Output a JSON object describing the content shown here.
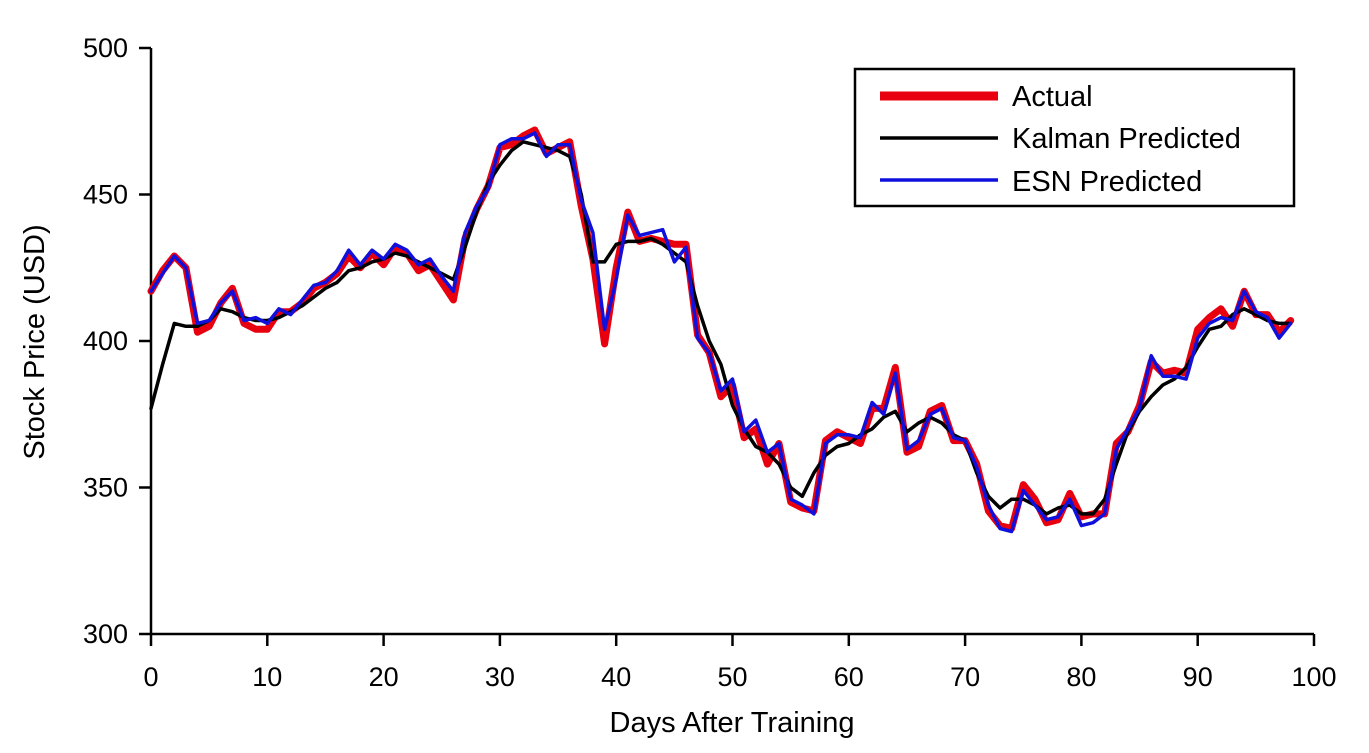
{
  "chart_data": {
    "type": "line",
    "title": "",
    "xlabel": "Days After Training",
    "ylabel": "Stock Price (USD)",
    "xlim": [
      0,
      100
    ],
    "ylim": [
      300,
      500
    ],
    "xticks": [
      0,
      10,
      20,
      30,
      40,
      50,
      60,
      70,
      80,
      90,
      100
    ],
    "yticks": [
      300,
      350,
      400,
      450,
      500
    ],
    "grid": false,
    "legend": {
      "position": "top-right"
    },
    "x": [
      0,
      1,
      2,
      3,
      4,
      5,
      6,
      7,
      8,
      9,
      10,
      11,
      12,
      13,
      14,
      15,
      16,
      17,
      18,
      19,
      20,
      21,
      22,
      23,
      24,
      25,
      26,
      27,
      28,
      29,
      30,
      31,
      32,
      33,
      34,
      35,
      36,
      37,
      38,
      39,
      40,
      41,
      42,
      43,
      44,
      45,
      46,
      47,
      48,
      49,
      50,
      51,
      52,
      53,
      54,
      55,
      56,
      57,
      58,
      59,
      60,
      61,
      62,
      63,
      64,
      65,
      66,
      67,
      68,
      69,
      70,
      71,
      72,
      73,
      74,
      75,
      76,
      77,
      78,
      79,
      80,
      81,
      82,
      83,
      84,
      85,
      86,
      87,
      88,
      89,
      90,
      91,
      92,
      93,
      94,
      95,
      96,
      97,
      98
    ],
    "series": [
      {
        "name": "Actual",
        "color": "#e8000f",
        "values": [
          417,
          424,
          429,
          425,
          403,
          405,
          413,
          418,
          406,
          404,
          404,
          410,
          410,
          413,
          418,
          420,
          423,
          429,
          425,
          430,
          426,
          432,
          430,
          424,
          426,
          420,
          414,
          435,
          445,
          453,
          466,
          467,
          470,
          472,
          464,
          466,
          468,
          446,
          428,
          399,
          425,
          444,
          434,
          435,
          434,
          433,
          433,
          402,
          396,
          381,
          385,
          367,
          370,
          358,
          365,
          345,
          343,
          342,
          366,
          369,
          367,
          365,
          377,
          377,
          391,
          362,
          364,
          376,
          378,
          366,
          366,
          358,
          342,
          337,
          336,
          351,
          346,
          338,
          339,
          348,
          340,
          341,
          341,
          365,
          369,
          378,
          393,
          389,
          390,
          389,
          404,
          408,
          411,
          405,
          417,
          409,
          409,
          403,
          407
        ]
      },
      {
        "name": "Kalman Predicted",
        "color": "#000000",
        "values": [
          377,
          392,
          406,
          405,
          405,
          407,
          411,
          410,
          408,
          407,
          407,
          408,
          410,
          412,
          415,
          418,
          420,
          424,
          425,
          427,
          428,
          430,
          429,
          427,
          425,
          423,
          421,
          432,
          444,
          454,
          460,
          465,
          468,
          467,
          466,
          465,
          463,
          450,
          427,
          427,
          433,
          434,
          434,
          435,
          433,
          430,
          427,
          412,
          400,
          392,
          378,
          370,
          364,
          362,
          358,
          350,
          347,
          355,
          361,
          364,
          365,
          368,
          370,
          374,
          376,
          369,
          372,
          374,
          372,
          368,
          366,
          355,
          347,
          343,
          346,
          346,
          344,
          341,
          343,
          344,
          341,
          341,
          346,
          358,
          369,
          376,
          381,
          385,
          387,
          391,
          398,
          404,
          405,
          409,
          411,
          409,
          407,
          406,
          406
        ]
      },
      {
        "name": "ESN Predicted",
        "color": "#1010dd",
        "values": [
          417,
          423,
          429,
          425,
          406,
          407,
          413,
          417,
          407,
          408,
          406,
          411,
          409,
          414,
          419,
          420,
          424,
          431,
          426,
          431,
          428,
          433,
          431,
          426,
          428,
          422,
          417,
          437,
          446,
          452,
          467,
          469,
          469,
          471,
          463,
          467,
          467,
          448,
          437,
          404,
          421,
          443,
          436,
          437,
          438,
          427,
          432,
          401,
          396,
          383,
          387,
          369,
          373,
          362,
          365,
          346,
          344,
          341,
          365,
          368,
          368,
          367,
          379,
          375,
          389,
          363,
          366,
          375,
          377,
          367,
          366,
          357,
          344,
          336,
          335,
          349,
          344,
          339,
          340,
          346,
          337,
          338,
          341,
          363,
          370,
          377,
          395,
          388,
          388,
          387,
          401,
          406,
          408,
          407,
          417,
          410,
          408,
          401,
          406
        ]
      }
    ]
  }
}
